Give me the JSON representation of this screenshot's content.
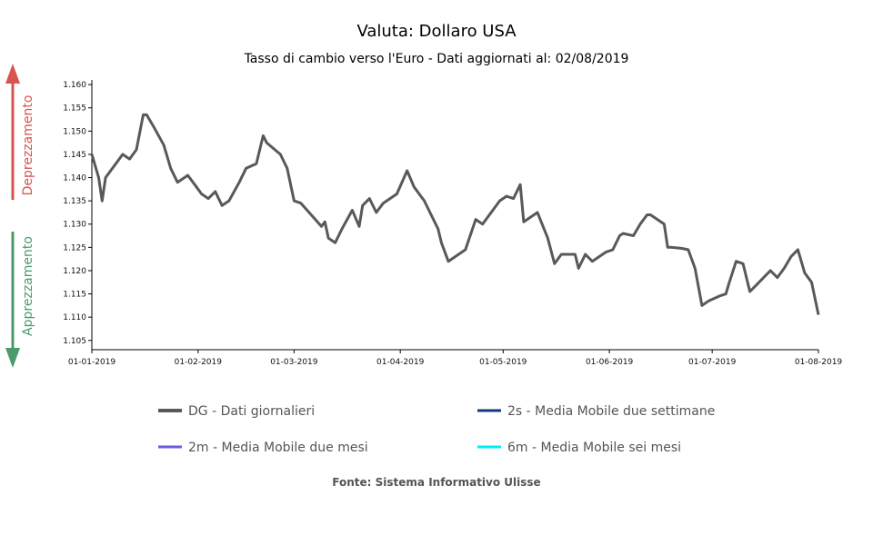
{
  "chart_data": {
    "type": "line",
    "title": "Valuta: Dollaro USA",
    "subtitle": "Tasso di cambio verso l'Euro - Dati aggiornati al: 02/08/2019",
    "source": "Fonte: Sistema Informativo Ulisse",
    "side_labels": {
      "top": "Deprezzamento",
      "bottom": "Apprezzamento"
    },
    "colors": {
      "top_arrow": "#d9534f",
      "bottom_arrow": "#4a9a6a",
      "axis": "#000000"
    },
    "x_ticks": [
      "01-01-2019",
      "01-02-2019",
      "01-03-2019",
      "01-04-2019",
      "01-05-2019",
      "01-06-2019",
      "01-07-2019",
      "01-08-2019"
    ],
    "y_ticks": [
      "1.160",
      "1.155",
      "1.150",
      "1.145",
      "1.140",
      "1.135",
      "1.130",
      "1.125",
      "1.120",
      "1.115",
      "1.110",
      "1.105"
    ],
    "ylim": [
      1.103,
      1.161
    ],
    "xlim": [
      "2019-01-01",
      "2019-08-01"
    ],
    "grid": false,
    "legend_position": "bottom",
    "series": [
      {
        "name": "DG - Dati giornalieri",
        "color": "#595959",
        "points": [
          [
            "2019-01-01",
            1.145
          ],
          [
            "2019-01-03",
            1.14
          ],
          [
            "2019-01-04",
            1.135
          ],
          [
            "2019-01-05",
            1.14
          ],
          [
            "2019-01-08",
            1.143
          ],
          [
            "2019-01-10",
            1.145
          ],
          [
            "2019-01-12",
            1.144
          ],
          [
            "2019-01-14",
            1.146
          ],
          [
            "2019-01-16",
            1.1535
          ],
          [
            "2019-01-17",
            1.1535
          ],
          [
            "2019-01-19",
            1.151
          ],
          [
            "2019-01-22",
            1.147
          ],
          [
            "2019-01-24",
            1.142
          ],
          [
            "2019-01-26",
            1.139
          ],
          [
            "2019-01-29",
            1.1405
          ],
          [
            "2019-01-31",
            1.1385
          ],
          [
            "2019-02-02",
            1.1365
          ],
          [
            "2019-02-04",
            1.1355
          ],
          [
            "2019-02-06",
            1.137
          ],
          [
            "2019-02-08",
            1.134
          ],
          [
            "2019-02-10",
            1.135
          ],
          [
            "2019-02-13",
            1.139
          ],
          [
            "2019-02-15",
            1.142
          ],
          [
            "2019-02-18",
            1.143
          ],
          [
            "2019-02-20",
            1.149
          ],
          [
            "2019-02-21",
            1.1475
          ],
          [
            "2019-02-25",
            1.145
          ],
          [
            "2019-02-27",
            1.142
          ],
          [
            "2019-03-01",
            1.135
          ],
          [
            "2019-03-03",
            1.1345
          ],
          [
            "2019-03-06",
            1.132
          ],
          [
            "2019-03-09",
            1.1295
          ],
          [
            "2019-03-10",
            1.1305
          ],
          [
            "2019-03-11",
            1.127
          ],
          [
            "2019-03-13",
            1.126
          ],
          [
            "2019-03-15",
            1.129
          ],
          [
            "2019-03-18",
            1.133
          ],
          [
            "2019-03-20",
            1.1295
          ],
          [
            "2019-03-21",
            1.134
          ],
          [
            "2019-03-23",
            1.1355
          ],
          [
            "2019-03-25",
            1.1325
          ],
          [
            "2019-03-27",
            1.1345
          ],
          [
            "2019-03-29",
            1.1355
          ],
          [
            "2019-03-31",
            1.1365
          ],
          [
            "2019-04-03",
            1.1415
          ],
          [
            "2019-04-05",
            1.138
          ],
          [
            "2019-04-08",
            1.135
          ],
          [
            "2019-04-10",
            1.132
          ],
          [
            "2019-04-12",
            1.129
          ],
          [
            "2019-04-13",
            1.126
          ],
          [
            "2019-04-15",
            1.122
          ],
          [
            "2019-04-17",
            1.123
          ],
          [
            "2019-04-20",
            1.1245
          ],
          [
            "2019-04-23",
            1.131
          ],
          [
            "2019-04-25",
            1.13
          ],
          [
            "2019-04-27",
            1.132
          ],
          [
            "2019-04-30",
            1.135
          ],
          [
            "2019-05-02",
            1.136
          ],
          [
            "2019-05-04",
            1.1355
          ],
          [
            "2019-05-06",
            1.1385
          ],
          [
            "2019-05-07",
            1.1305
          ],
          [
            "2019-05-09",
            1.1315
          ],
          [
            "2019-05-11",
            1.1325
          ],
          [
            "2019-05-14",
            1.127
          ],
          [
            "2019-05-16",
            1.1215
          ],
          [
            "2019-05-18",
            1.1235
          ],
          [
            "2019-05-20",
            1.1235
          ],
          [
            "2019-05-22",
            1.1235
          ],
          [
            "2019-05-23",
            1.1205
          ],
          [
            "2019-05-25",
            1.1235
          ],
          [
            "2019-05-27",
            1.122
          ],
          [
            "2019-05-29",
            1.123
          ],
          [
            "2019-05-31",
            1.124
          ],
          [
            "2019-06-02",
            1.1245
          ],
          [
            "2019-06-04",
            1.1275
          ],
          [
            "2019-06-05",
            1.128
          ],
          [
            "2019-06-08",
            1.1275
          ],
          [
            "2019-06-10",
            1.13
          ],
          [
            "2019-06-12",
            1.132
          ],
          [
            "2019-06-13",
            1.132
          ],
          [
            "2019-06-15",
            1.131
          ],
          [
            "2019-06-17",
            1.13
          ],
          [
            "2019-06-18",
            1.125
          ],
          [
            "2019-06-19",
            1.125
          ],
          [
            "2019-06-22",
            1.1248
          ],
          [
            "2019-06-24",
            1.1245
          ],
          [
            "2019-06-26",
            1.1205
          ],
          [
            "2019-06-28",
            1.1125
          ],
          [
            "2019-06-30",
            1.1135
          ],
          [
            "2019-07-03",
            1.1145
          ],
          [
            "2019-07-05",
            1.115
          ],
          [
            "2019-07-06",
            1.1175
          ],
          [
            "2019-07-08",
            1.122
          ],
          [
            "2019-07-10",
            1.1215
          ],
          [
            "2019-07-12",
            1.1155
          ],
          [
            "2019-07-14",
            1.117
          ],
          [
            "2019-07-16",
            1.1185
          ],
          [
            "2019-07-18",
            1.12
          ],
          [
            "2019-07-20",
            1.1185
          ],
          [
            "2019-07-22",
            1.1205
          ],
          [
            "2019-07-24",
            1.123
          ],
          [
            "2019-07-26",
            1.1245
          ],
          [
            "2019-07-28",
            1.1195
          ],
          [
            "2019-07-30",
            1.1175
          ],
          [
            "2019-08-01",
            1.1105
          ]
        ]
      },
      {
        "name": "2s - Media Mobile due settimane",
        "color": "#0d3b7a",
        "points": []
      },
      {
        "name": "2m - Media Mobile due mesi",
        "color": "#6a5ee0",
        "points": []
      },
      {
        "name": "6m - Media Mobile sei mesi",
        "color": "#00f0f0",
        "points": []
      }
    ]
  }
}
